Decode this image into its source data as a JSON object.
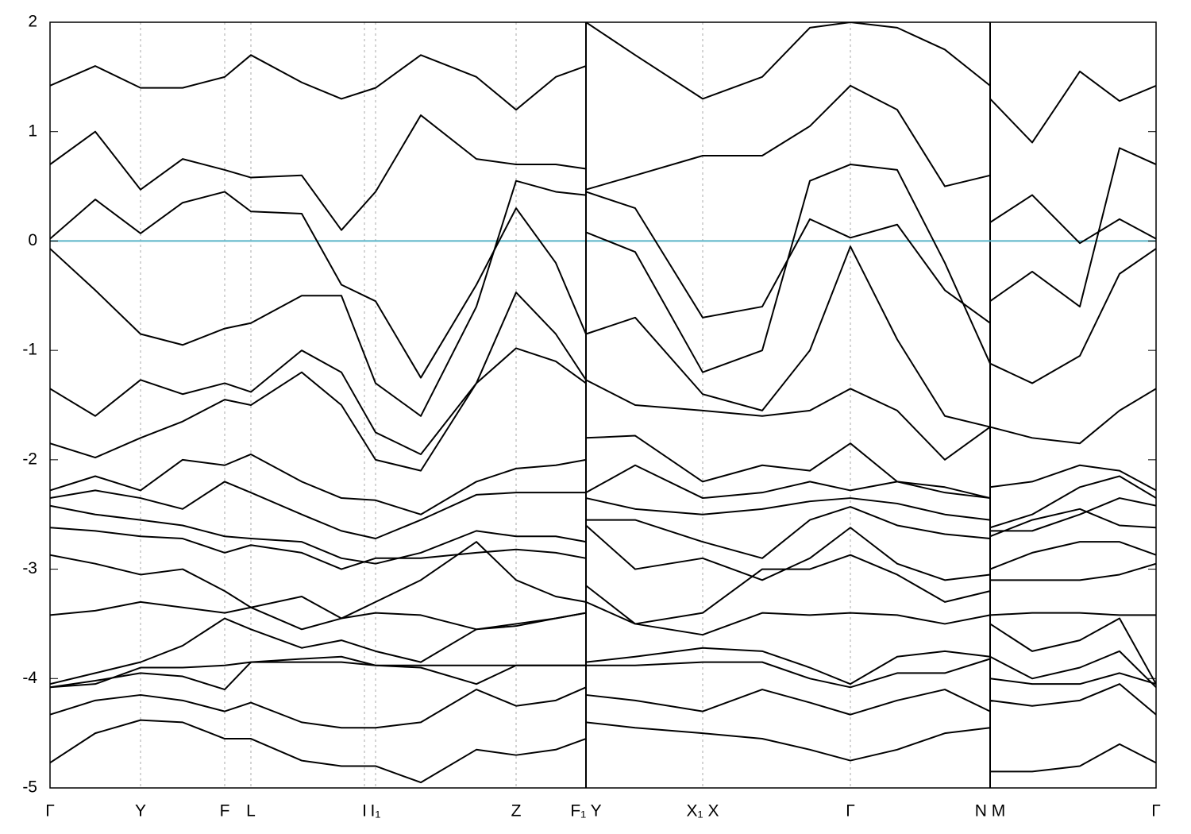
{
  "chart_data": {
    "type": "line",
    "x": [
      0,
      0.57,
      1.14,
      1.67,
      2.2,
      2.53,
      3.17,
      3.67,
      4.1,
      4.67,
      5.37,
      5.87,
      6.37,
      6.75,
      6.75,
      7.37,
      8.22,
      8.97,
      9.57,
      10.08,
      10.67,
      11.27,
      11.84,
      11.84,
      12.37,
      12.97,
      13.47,
      13.93
    ],
    "xlim": [
      0,
      13.93
    ],
    "ylim": [
      -5,
      2
    ],
    "xticks": [
      {
        "value": 0,
        "label": "Γ"
      },
      {
        "value": 1.14,
        "label": "Y"
      },
      {
        "value": 2.2,
        "label": "F"
      },
      {
        "value": 2.53,
        "label": "L"
      },
      {
        "value": 3.96,
        "label": "I"
      },
      {
        "value": 4.1,
        "label": "I₁"
      },
      {
        "value": 5.87,
        "label": "Z"
      },
      {
        "value": 6.75,
        "label": "F₁ Y"
      },
      {
        "value": 8.22,
        "label": "X₁ X"
      },
      {
        "value": 10.08,
        "label": "Γ"
      },
      {
        "value": 11.84,
        "label": "N M"
      },
      {
        "value": 13.93,
        "label": "Γ"
      }
    ],
    "yticks": [
      2,
      1,
      0,
      -1,
      -2,
      -3,
      -4,
      -5
    ],
    "xbreaks": [
      6.75,
      11.84
    ],
    "xgrid": true,
    "reference_line": {
      "value": 0,
      "color": "#5ab4c8"
    },
    "series": [
      {
        "color": "#000000",
        "values": [
          1.42,
          1.6,
          1.4,
          1.4,
          1.5,
          1.7,
          1.45,
          1.3,
          1.4,
          1.7,
          1.5,
          1.2,
          1.5,
          1.6,
          2.0,
          1.7,
          1.3,
          1.5,
          1.95,
          2.0,
          1.95,
          1.75,
          1.42,
          1.3,
          0.9,
          1.55,
          1.28,
          1.42
        ]
      },
      {
        "color": "#000000",
        "values": [
          0.7,
          1.0,
          0.47,
          0.75,
          0.65,
          0.58,
          0.6,
          0.1,
          0.45,
          1.15,
          0.75,
          0.7,
          0.7,
          0.66,
          0.47,
          0.6,
          0.78,
          0.78,
          1.05,
          1.42,
          1.2,
          0.5,
          0.6,
          0.17,
          0.42,
          -0.02,
          0.2,
          0.02
        ]
      },
      {
        "color": "#000000",
        "values": [
          0.02,
          0.38,
          0.07,
          0.35,
          0.45,
          0.27,
          0.25,
          -0.4,
          -0.55,
          -1.25,
          -0.4,
          0.3,
          -0.2,
          -0.85,
          0.45,
          0.3,
          -0.7,
          -0.6,
          0.2,
          0.03,
          0.15,
          -0.45,
          -0.75,
          -0.55,
          -0.28,
          -0.6,
          0.85,
          0.7
        ]
      },
      {
        "color": "#000000",
        "values": [
          -0.07,
          -0.45,
          -0.85,
          -0.95,
          -0.8,
          -0.75,
          -0.5,
          -0.5,
          -1.3,
          -1.6,
          -0.6,
          0.55,
          0.45,
          0.42,
          0.08,
          -0.1,
          -1.2,
          -1.0,
          0.55,
          0.7,
          0.65,
          -0.2,
          -1.12,
          -1.12,
          -1.3,
          -1.05,
          -0.3,
          -0.07
        ]
      },
      {
        "color": "#000000",
        "values": [
          -1.35,
          -1.6,
          -1.27,
          -1.4,
          -1.3,
          -1.38,
          -1.0,
          -1.2,
          -1.75,
          -1.95,
          -1.3,
          -0.98,
          -1.1,
          -1.3,
          -1.27,
          -1.5,
          -1.55,
          -1.6,
          -1.55,
          -1.35,
          -1.55,
          -2.0,
          -1.7,
          -2.25,
          -2.2,
          -2.05,
          -2.1,
          -2.28
        ]
      },
      {
        "color": "#000000",
        "values": [
          -1.85,
          -1.98,
          -1.8,
          -1.65,
          -1.45,
          -1.5,
          -1.2,
          -1.5,
          -2.0,
          -2.1,
          -1.3,
          -0.47,
          -0.85,
          -1.27,
          -0.85,
          -0.7,
          -1.4,
          -1.55,
          -1.0,
          -0.05,
          -0.9,
          -1.6,
          -1.7,
          -1.7,
          -1.8,
          -1.85,
          -1.55,
          -1.35
        ]
      },
      {
        "color": "#000000",
        "values": [
          -2.28,
          -2.15,
          -2.28,
          -2.0,
          -2.05,
          -1.95,
          -2.2,
          -2.35,
          -2.37,
          -2.5,
          -2.2,
          -2.08,
          -2.05,
          -2.0,
          -1.8,
          -1.78,
          -2.2,
          -2.05,
          -2.1,
          -1.85,
          -2.2,
          -2.25,
          -2.35,
          -2.62,
          -2.5,
          -2.25,
          -2.15,
          -2.35
        ]
      },
      {
        "color": "#000000",
        "values": [
          -2.35,
          -2.28,
          -2.35,
          -2.45,
          -2.2,
          -2.3,
          -2.5,
          -2.65,
          -2.72,
          -2.55,
          -2.32,
          -2.3,
          -2.3,
          -2.3,
          -2.3,
          -2.05,
          -2.35,
          -2.3,
          -2.2,
          -2.28,
          -2.2,
          -2.3,
          -2.35,
          -2.65,
          -2.65,
          -2.5,
          -2.35,
          -2.42
        ]
      },
      {
        "color": "#000000",
        "values": [
          -2.42,
          -2.5,
          -2.55,
          -2.6,
          -2.7,
          -2.72,
          -2.75,
          -2.9,
          -2.95,
          -2.85,
          -2.65,
          -2.7,
          -2.7,
          -2.75,
          -2.35,
          -2.45,
          -2.5,
          -2.45,
          -2.38,
          -2.35,
          -2.4,
          -2.5,
          -2.55,
          -2.7,
          -2.55,
          -2.45,
          -2.6,
          -2.62
        ]
      },
      {
        "color": "#000000",
        "values": [
          -2.62,
          -2.65,
          -2.7,
          -2.72,
          -2.85,
          -2.78,
          -2.85,
          -3.0,
          -2.9,
          -2.9,
          -2.85,
          -2.82,
          -2.85,
          -2.9,
          -2.55,
          -2.55,
          -2.75,
          -2.9,
          -2.55,
          -2.43,
          -2.6,
          -2.68,
          -2.72,
          -3.0,
          -2.85,
          -2.75,
          -2.75,
          -2.87
        ]
      },
      {
        "color": "#000000",
        "values": [
          -2.87,
          -2.95,
          -3.05,
          -3.0,
          -3.2,
          -3.35,
          -3.25,
          -3.45,
          -3.3,
          -3.1,
          -2.75,
          -3.1,
          -3.25,
          -3.3,
          -2.6,
          -3.0,
          -2.9,
          -3.1,
          -2.9,
          -2.62,
          -2.95,
          -3.1,
          -3.05,
          -3.1,
          -3.1,
          -3.1,
          -3.05,
          -2.95
        ]
      },
      {
        "color": "#000000",
        "values": [
          -3.42,
          -3.38,
          -3.3,
          -3.35,
          -3.4,
          -3.35,
          -3.55,
          -3.45,
          -3.4,
          -3.42,
          -3.55,
          -3.52,
          -3.45,
          -3.4,
          -3.15,
          -3.5,
          -3.4,
          -3.0,
          -3.0,
          -2.87,
          -3.05,
          -3.3,
          -3.2,
          -3.42,
          -3.4,
          -3.4,
          -3.42,
          -3.42
        ]
      },
      {
        "color": "#000000",
        "values": [
          -4.08,
          -4.05,
          -3.9,
          -3.9,
          -3.88,
          -3.85,
          -3.85,
          -3.85,
          -3.88,
          -3.88,
          -3.88,
          -3.88,
          -3.88,
          -3.88,
          -3.3,
          -3.5,
          -3.6,
          -3.4,
          -3.42,
          -3.4,
          -3.42,
          -3.5,
          -3.42,
          -3.5,
          -3.75,
          -3.65,
          -3.45,
          -4.05
        ]
      },
      {
        "color": "#000000",
        "values": [
          -4.05,
          -3.95,
          -3.85,
          -3.7,
          -3.45,
          -3.55,
          -3.72,
          -3.65,
          -3.75,
          -3.85,
          -3.55,
          -3.5,
          -3.45,
          -3.4,
          -3.85,
          -3.8,
          -3.72,
          -3.75,
          -3.9,
          -4.05,
          -3.8,
          -3.75,
          -3.8,
          -3.8,
          -4.0,
          -3.9,
          -3.75,
          -4.08
        ]
      },
      {
        "color": "#000000",
        "values": [
          -4.08,
          -4.02,
          -3.95,
          -3.98,
          -4.1,
          -3.85,
          -3.82,
          -3.8,
          -3.88,
          -3.9,
          -4.05,
          -3.88,
          -3.88,
          -3.88,
          -3.88,
          -3.88,
          -3.85,
          -3.85,
          -4.0,
          -4.08,
          -3.95,
          -3.95,
          -3.82,
          -4.0,
          -4.05,
          -4.05,
          -3.95,
          -4.05
        ]
      },
      {
        "color": "#000000",
        "values": [
          -4.33,
          -4.2,
          -4.15,
          -4.2,
          -4.3,
          -4.22,
          -4.4,
          -4.45,
          -4.45,
          -4.4,
          -4.1,
          -4.25,
          -4.2,
          -4.08,
          -4.15,
          -4.2,
          -4.3,
          -4.1,
          -4.22,
          -4.33,
          -4.2,
          -4.1,
          -4.3,
          -4.2,
          -4.25,
          -4.2,
          -4.05,
          -4.33
        ]
      },
      {
        "color": "#000000",
        "values": [
          -4.77,
          -4.5,
          -4.38,
          -4.4,
          -4.55,
          -4.55,
          -4.75,
          -4.8,
          -4.8,
          -4.95,
          -4.65,
          -4.7,
          -4.65,
          -4.55,
          -4.4,
          -4.45,
          -4.5,
          -4.55,
          -4.65,
          -4.75,
          -4.65,
          -4.5,
          -4.45,
          -4.85,
          -4.85,
          -4.8,
          -4.6,
          -4.77
        ]
      }
    ]
  }
}
